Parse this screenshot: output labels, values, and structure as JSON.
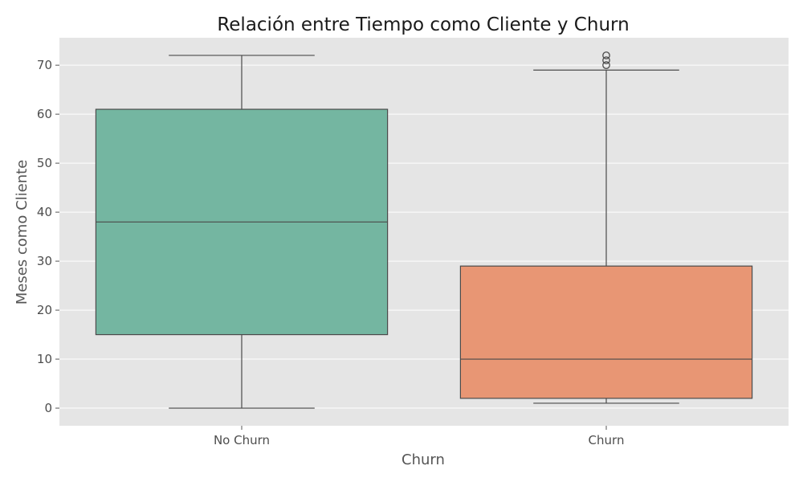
{
  "chart_data": {
    "type": "boxplot",
    "title": "Relación entre Tiempo como Cliente y Churn",
    "xlabel": "Churn",
    "ylabel": "Meses como Cliente",
    "categories": [
      "No Churn",
      "Churn"
    ],
    "ylim": [
      -3.6,
      75.6
    ],
    "yticks": [
      0,
      10,
      20,
      30,
      40,
      50,
      60,
      70
    ],
    "grid": true,
    "background": "#e5e5e5",
    "boxes": [
      {
        "category": "No Churn",
        "whisker_low": 0,
        "q1": 15,
        "median": 38,
        "q3": 61,
        "whisker_high": 72,
        "outliers": [],
        "color": "#74b6a1"
      },
      {
        "category": "Churn",
        "whisker_low": 1,
        "q1": 2,
        "median": 10,
        "q3": 29,
        "whisker_high": 69,
        "outliers": [
          70,
          71,
          72
        ],
        "color": "#e89674"
      }
    ]
  }
}
